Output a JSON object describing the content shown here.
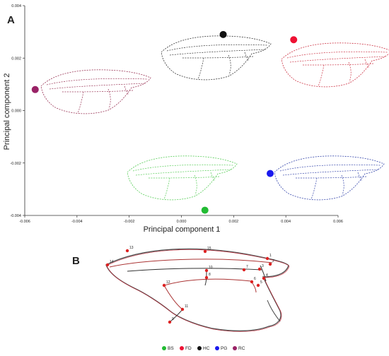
{
  "panel_a": {
    "label": "A",
    "xlabel": "Principal component 1",
    "ylabel": "Principal component 2"
  },
  "panel_b": {
    "label": "B",
    "landmark_labels": [
      "1",
      "2",
      "3",
      "4",
      "5",
      "6",
      "7",
      "8",
      "9",
      "10",
      "11",
      "12",
      "13",
      "14",
      "15"
    ]
  },
  "chart_data": [
    {
      "type": "scatter",
      "xlabel": "Principal component 1",
      "ylabel": "Principal component 2",
      "xlim": [
        -0.006,
        0.006
      ],
      "ylim": [
        -0.004,
        0.004
      ],
      "xticks": [
        "-0.006",
        "-0.004",
        "-0.002",
        "0.000",
        "0.002",
        "0.004",
        "0.006"
      ],
      "yticks": [
        "-0.004",
        "-0.002",
        "0.000",
        "0.002",
        "0.004"
      ],
      "grid": false,
      "series": [
        {
          "name": "BS",
          "color": "#22bb33",
          "x": [
            0.0009
          ],
          "y": [
            -0.0038
          ],
          "wing_color": "#55cc55"
        },
        {
          "name": "FD",
          "color": "#ee1133",
          "x": [
            0.0043
          ],
          "y": [
            0.0027
          ],
          "wing_color": "#cc3344"
        },
        {
          "name": "HC",
          "color": "#111111",
          "x": [
            0.0016
          ],
          "y": [
            0.0029
          ],
          "wing_color": "#333333"
        },
        {
          "name": "PG",
          "color": "#1a1aee",
          "x": [
            0.0034
          ],
          "y": [
            -0.0024
          ],
          "wing_color": "#3344aa"
        },
        {
          "name": "RC",
          "color": "#992266",
          "x": [
            -0.0056
          ],
          "y": [
            0.0008
          ],
          "wing_color": "#993355"
        }
      ]
    }
  ],
  "legend": {
    "placement": "bottom",
    "items": [
      {
        "label": "BS",
        "color": "#22bb33"
      },
      {
        "label": "FD",
        "color": "#ee1133"
      },
      {
        "label": "HC",
        "color": "#111111"
      },
      {
        "label": "PG",
        "color": "#1a1aee"
      },
      {
        "label": "RC",
        "color": "#992266"
      }
    ]
  }
}
